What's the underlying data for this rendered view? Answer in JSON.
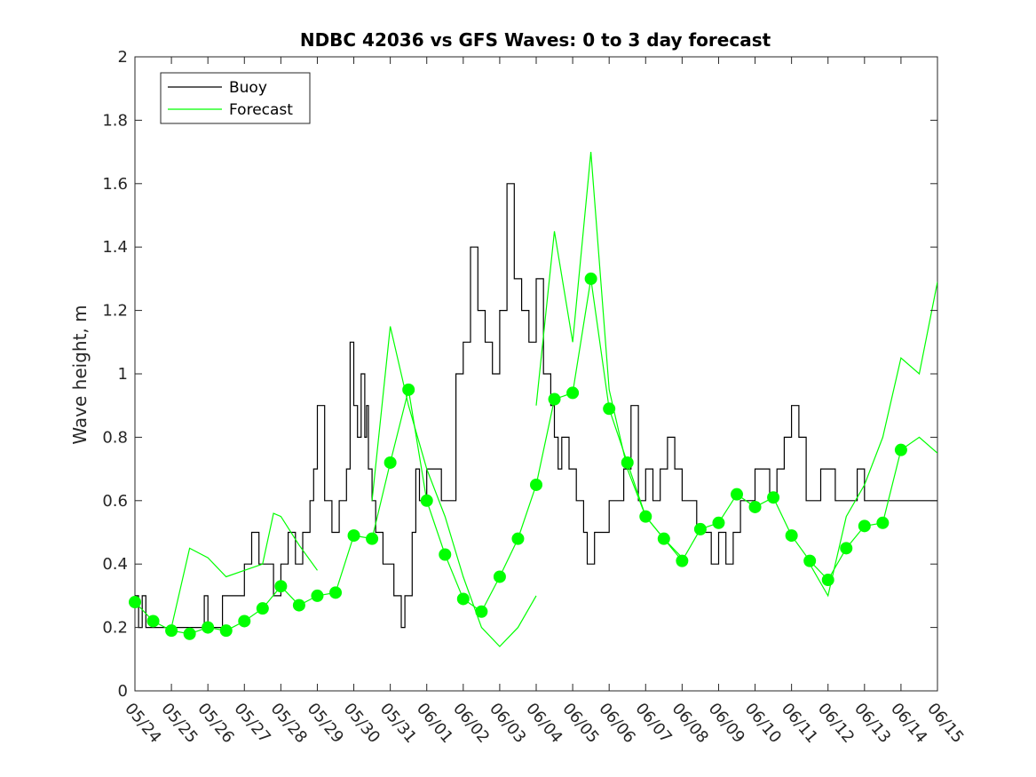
{
  "chart_data": {
    "type": "line",
    "title": "NDBC 42036 vs GFS Waves: 0 to 3 day forecast",
    "xlabel": "",
    "ylabel": "Wave height, m",
    "xlim": [
      "05/24",
      "06/15"
    ],
    "ylim": [
      0,
      2
    ],
    "x_ticks": [
      "05/24",
      "05/25",
      "05/26",
      "05/27",
      "05/28",
      "05/29",
      "05/30",
      "05/31",
      "06/01",
      "06/02",
      "06/03",
      "06/04",
      "06/05",
      "06/06",
      "06/07",
      "06/08",
      "06/09",
      "06/10",
      "06/11",
      "06/12",
      "06/13",
      "06/14",
      "06/15"
    ],
    "y_ticks": [
      "0",
      "0.2",
      "0.4",
      "0.6",
      "0.8",
      "1",
      "1.2",
      "1.4",
      "1.6",
      "1.8",
      "2"
    ],
    "grid": false,
    "legend_position": "top-left",
    "colors": {
      "buoy": "#000000",
      "forecast": "#00ff00",
      "axes": "#262626"
    },
    "series": [
      {
        "name": "Buoy",
        "style": "step",
        "x": [
          0,
          0.1,
          0.2,
          0.3,
          0.4,
          0.5,
          0.8,
          1.0,
          1.3,
          1.5,
          1.8,
          1.9,
          2.0,
          2.2,
          2.4,
          2.6,
          2.8,
          3.0,
          3.2,
          3.4,
          3.6,
          3.8,
          4.0,
          4.2,
          4.4,
          4.6,
          4.8,
          4.9,
          5.0,
          5.2,
          5.4,
          5.6,
          5.8,
          5.9,
          6.0,
          6.1,
          6.2,
          6.3,
          6.35,
          6.4,
          6.5,
          6.6,
          6.7,
          6.8,
          6.9,
          7.0,
          7.1,
          7.2,
          7.3,
          7.4,
          7.5,
          7.6,
          7.7,
          7.8,
          8.0,
          8.2,
          8.4,
          8.6,
          8.8,
          9.0,
          9.2,
          9.4,
          9.6,
          9.8,
          10.0,
          10.2,
          10.4,
          10.6,
          10.8,
          11.0,
          11.2,
          11.4,
          11.5,
          11.6,
          11.7,
          11.8,
          11.9,
          12.0,
          12.1,
          12.2,
          12.3,
          12.4,
          12.5,
          12.6,
          12.7,
          12.8,
          12.9,
          13.0,
          13.2,
          13.4,
          13.6,
          13.8,
          14.0,
          14.2,
          14.4,
          14.6,
          14.8,
          15.0,
          15.2,
          15.4,
          15.6,
          15.8,
          16.0,
          16.2,
          16.4,
          16.6,
          16.8,
          17.0,
          17.2,
          17.4,
          17.6,
          17.8,
          18.0,
          18.2,
          18.4,
          18.6,
          18.8,
          19.0,
          19.2,
          19.4,
          19.6,
          19.8,
          20.0,
          20.2,
          20.4,
          20.6,
          20.8,
          21.0,
          21.2,
          21.4,
          21.6,
          21.8,
          22.0
        ],
        "y": [
          0.3,
          0.2,
          0.3,
          0.2,
          0.2,
          0.2,
          0.2,
          0.2,
          0.2,
          0.2,
          0.2,
          0.3,
          0.2,
          0.2,
          0.3,
          0.3,
          0.3,
          0.4,
          0.5,
          0.4,
          0.4,
          0.3,
          0.4,
          0.5,
          0.4,
          0.5,
          0.6,
          0.7,
          0.9,
          0.6,
          0.5,
          0.6,
          0.7,
          1.1,
          0.9,
          0.8,
          1.0,
          0.8,
          0.9,
          0.7,
          0.6,
          0.5,
          0.5,
          0.4,
          0.4,
          0.4,
          0.3,
          0.3,
          0.2,
          0.3,
          0.3,
          0.5,
          0.7,
          0.6,
          0.7,
          0.7,
          0.6,
          0.6,
          1.0,
          1.1,
          1.4,
          1.2,
          1.1,
          1.0,
          1.2,
          1.6,
          1.3,
          1.2,
          1.1,
          1.3,
          1.0,
          0.9,
          0.8,
          0.7,
          0.8,
          0.8,
          0.7,
          0.7,
          0.6,
          0.6,
          0.5,
          0.4,
          0.4,
          0.5,
          0.5,
          0.5,
          0.5,
          0.6,
          0.6,
          0.7,
          0.9,
          0.6,
          0.7,
          0.6,
          0.7,
          0.8,
          0.7,
          0.6,
          0.6,
          0.5,
          0.5,
          0.4,
          0.5,
          0.4,
          0.5,
          0.6,
          0.6,
          0.7,
          0.7,
          0.6,
          0.7,
          0.8,
          0.9,
          0.8,
          0.6,
          0.6,
          0.7,
          0.7,
          0.6,
          0.6,
          0.6,
          0.7,
          0.6,
          0.6,
          0.6,
          0.6,
          0.6,
          0.6,
          0.6,
          0.6,
          0.6,
          0.6,
          0.6
        ]
      },
      {
        "name": "Forecast",
        "style": "line",
        "x": [
          0,
          0.5,
          1.0,
          1.5,
          2.0,
          2.5,
          3.0,
          3.5,
          4.0,
          4.5,
          5.0,
          5.5,
          6.0,
          6.5,
          7.0,
          7.5,
          8.0,
          8.5,
          9.0,
          9.5,
          10.0,
          10.5,
          11.0,
          11.5,
          12.0,
          12.5,
          13.0,
          13.5,
          14.0,
          14.5,
          15.0,
          15.5,
          16.0,
          16.5,
          17.0,
          17.5,
          18.0,
          18.5,
          19.0,
          19.5,
          20.0,
          20.5,
          21.0,
          21.5,
          22.0
        ],
        "y": [
          0.28,
          0.22,
          0.19,
          0.18,
          0.2,
          0.19,
          0.22,
          0.26,
          0.33,
          0.27,
          0.3,
          0.31,
          0.49,
          0.48,
          0.72,
          0.95,
          0.6,
          0.43,
          0.29,
          0.25,
          0.36,
          0.48,
          0.65,
          0.92,
          0.94,
          1.3,
          0.89,
          0.72,
          0.55,
          0.48,
          0.41,
          0.51,
          0.53,
          0.62,
          0.58,
          0.61,
          0.49,
          0.41,
          0.35,
          0.45,
          0.52,
          0.53,
          0.76,
          0.8,
          0.75
        ]
      },
      {
        "name": "",
        "style": "line",
        "x": [
          1.0,
          1.5,
          2.0,
          2.5,
          3.0,
          3.5,
          3.8,
          4.0,
          4.5,
          5.0
        ],
        "y": [
          0.2,
          0.45,
          0.42,
          0.36,
          0.38,
          0.4,
          0.56,
          0.55,
          0.46,
          0.38
        ]
      },
      {
        "name": "",
        "style": "line",
        "x": [
          6.5,
          7.0,
          7.5,
          8.0,
          8.5,
          9.0,
          9.5,
          10.0,
          10.5,
          11.0
        ],
        "y": [
          0.6,
          1.15,
          0.9,
          0.7,
          0.55,
          0.36,
          0.2,
          0.14,
          0.2,
          0.3
        ]
      },
      {
        "name": "",
        "style": "line",
        "x": [
          11.0,
          11.5,
          12.0,
          12.5,
          13.0,
          13.5,
          14.0,
          14.5,
          15.0
        ],
        "y": [
          0.9,
          1.45,
          1.1,
          1.7,
          0.95,
          0.7,
          0.55,
          0.48,
          0.42
        ]
      },
      {
        "name": "",
        "style": "line",
        "x": [
          18.5,
          19.0,
          19.5,
          20.0,
          20.5,
          21.0,
          21.5,
          22.0
        ],
        "y": [
          0.4,
          0.3,
          0.55,
          0.65,
          0.8,
          1.05,
          1.0,
          1.29
        ]
      }
    ],
    "markers": {
      "name": "",
      "x": [
        0,
        0.5,
        1.0,
        1.5,
        2.0,
        2.5,
        3.0,
        3.5,
        4.0,
        4.5,
        5.0,
        5.5,
        6.0,
        6.5,
        7.0,
        7.5,
        8.0,
        8.5,
        9.0,
        9.5,
        10.0,
        10.5,
        11.0,
        11.5,
        12.0,
        12.5,
        13.0,
        13.5,
        14.0,
        14.5,
        15.0,
        15.5,
        16.0,
        16.5,
        17.0,
        17.5,
        18.0,
        18.5,
        19.0,
        19.5,
        20.0,
        20.5,
        21.0
      ],
      "y": [
        0.28,
        0.22,
        0.19,
        0.18,
        0.2,
        0.19,
        0.22,
        0.26,
        0.33,
        0.27,
        0.3,
        0.31,
        0.49,
        0.48,
        0.72,
        0.95,
        0.6,
        0.43,
        0.29,
        0.25,
        0.36,
        0.48,
        0.65,
        0.92,
        0.94,
        1.3,
        0.89,
        0.72,
        0.55,
        0.48,
        0.41,
        0.51,
        0.53,
        0.62,
        0.58,
        0.61,
        0.49,
        0.41,
        0.35,
        0.45,
        0.52,
        0.53,
        0.76
      ]
    }
  }
}
